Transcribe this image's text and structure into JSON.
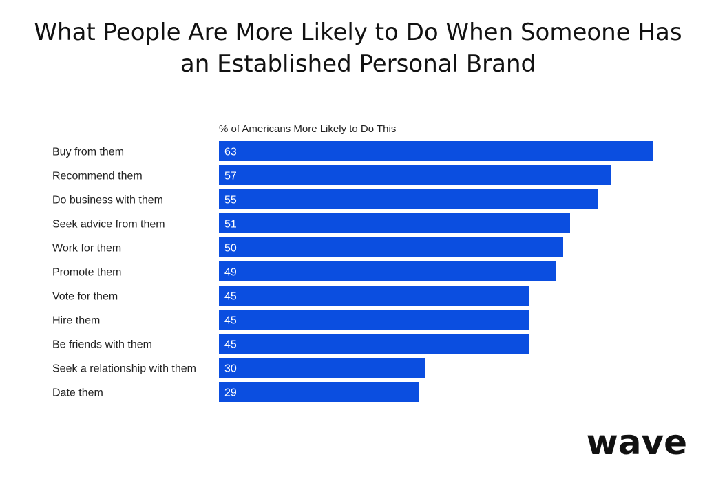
{
  "title": "What People Are More Likely to Do When Someone Has an Established Personal Brand",
  "logo": {
    "text": "wave",
    "color": "#111111"
  },
  "colors": {
    "bar": "#0b4ee0",
    "bar_label": "#ffffff",
    "category_label": "#222222"
  },
  "chart_data": {
    "type": "bar",
    "orientation": "horizontal",
    "title": "What People Are More Likely to Do When Someone Has an Established Personal Brand",
    "series_header": "% of Americans More Likely to Do This",
    "categories": [
      "Buy from them",
      "Recommend them",
      "Do business with them",
      "Seek advice from them",
      "Work for them",
      "Promote them",
      "Vote for them",
      "Hire them",
      "Be friends with them",
      "Seek a relationship with them",
      "Date them"
    ],
    "values": [
      63,
      57,
      55,
      51,
      50,
      49,
      45,
      45,
      45,
      30,
      29
    ],
    "xlim": [
      0,
      63
    ],
    "grid": false,
    "legend": "none",
    "data_labels": "inside-left"
  }
}
